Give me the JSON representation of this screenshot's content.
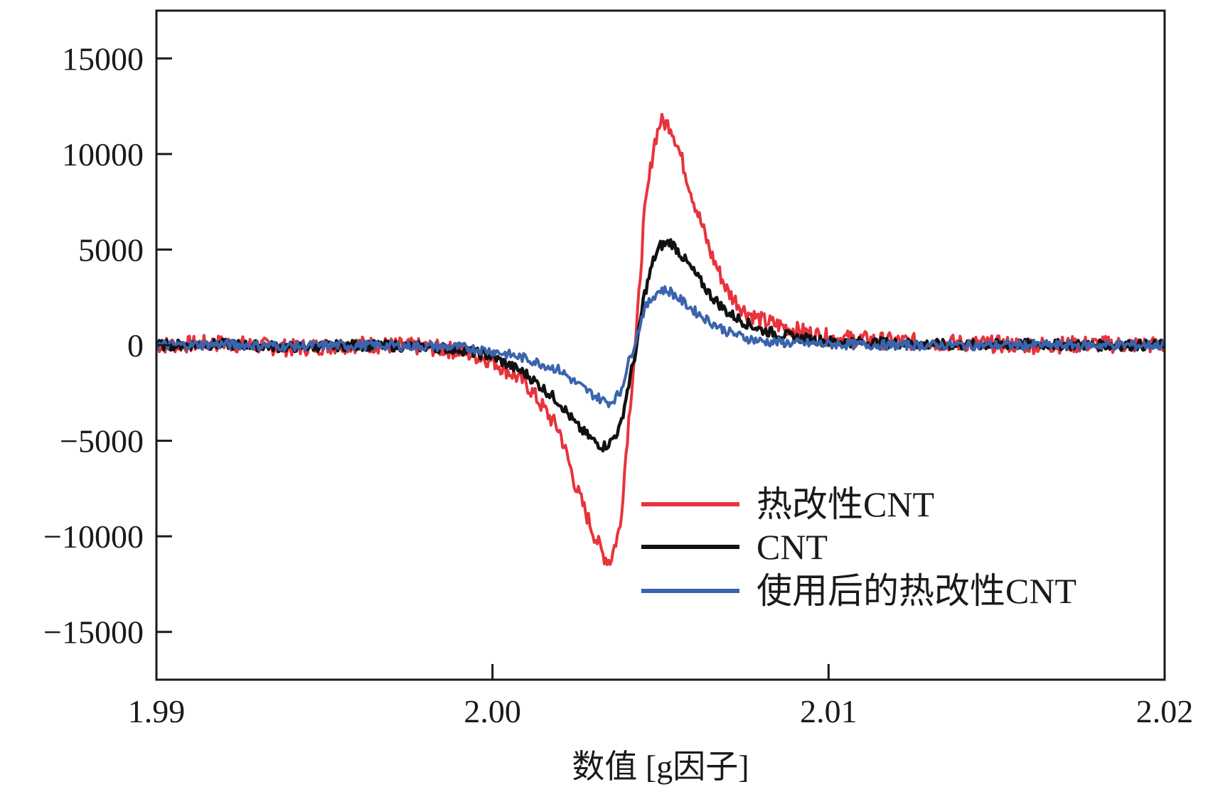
{
  "chart_data": {
    "type": "line",
    "xlabel": "数值 [g因子]",
    "ylabel": "",
    "xlim": [
      1.99,
      2.02
    ],
    "ylim": [
      -17500,
      17500
    ],
    "xticks": [
      1.99,
      2.0,
      2.01,
      2.02
    ],
    "xtick_labels": [
      "1.99",
      "2.00",
      "2.01",
      "2.02"
    ],
    "yticks": [
      15000,
      10000,
      5000,
      0,
      -5000,
      -10000,
      -15000
    ],
    "ytick_labels": [
      "15000",
      "10000",
      "5000",
      "0",
      "−5000",
      "−10000",
      "−15000"
    ],
    "grid": false,
    "legend_position": "bottom-right",
    "series": [
      {
        "name": "热改性CNT",
        "color": "#e8333a",
        "x": [
          1.99,
          1.992,
          1.994,
          1.996,
          1.998,
          1.999,
          2.0,
          2.001,
          2.002,
          2.0025,
          2.003,
          2.0033,
          2.0035,
          2.0038,
          2.004,
          2.0043,
          2.0045,
          2.0048,
          2.005,
          2.0053,
          2.0055,
          2.006,
          2.0065,
          2.007,
          2.0075,
          2.008,
          2.009,
          2.01,
          2.012,
          2.014,
          2.016,
          2.018,
          2.02
        ],
        "y": [
          0,
          100,
          -150,
          50,
          -100,
          -300,
          -800,
          -2000,
          -4500,
          -7500,
          -9800,
          -11000,
          -11300,
          -9500,
          -5000,
          1000,
          6500,
          10500,
          11700,
          11500,
          10500,
          7500,
          4800,
          2800,
          1800,
          1300,
          800,
          400,
          200,
          100,
          0,
          50,
          0
        ]
      },
      {
        "name": "CNT",
        "color": "#111111",
        "x": [
          1.99,
          1.992,
          1.994,
          1.996,
          1.998,
          1.999,
          2.0,
          2.001,
          2.002,
          2.0025,
          2.003,
          2.0033,
          2.0035,
          2.0038,
          2.004,
          2.0043,
          2.0045,
          2.0048,
          2.005,
          2.0053,
          2.0055,
          2.006,
          2.0065,
          2.007,
          2.0075,
          2.008,
          2.009,
          2.01,
          2.012,
          2.014,
          2.016,
          2.018,
          2.02
        ],
        "y": [
          0,
          50,
          -100,
          0,
          -80,
          -200,
          -600,
          -1500,
          -3000,
          -4200,
          -5000,
          -5300,
          -5100,
          -4300,
          -2500,
          0,
          2500,
          4500,
          5200,
          5400,
          5000,
          3800,
          2600,
          1700,
          1200,
          800,
          400,
          200,
          100,
          0,
          50,
          0,
          0
        ]
      },
      {
        "name": "使用后的热改性CNT",
        "color": "#3a64ad",
        "x": [
          1.99,
          1.992,
          1.994,
          1.996,
          1.998,
          1.999,
          2.0,
          2.001,
          2.002,
          2.0025,
          2.003,
          2.0033,
          2.0035,
          2.0038,
          2.004,
          2.0043,
          2.0045,
          2.0048,
          2.005,
          2.0053,
          2.0055,
          2.006,
          2.0065,
          2.007,
          2.0075,
          2.008,
          2.009,
          2.01,
          2.012,
          2.014,
          2.016,
          2.018,
          2.02
        ],
        "y": [
          0,
          50,
          -50,
          0,
          -50,
          -100,
          -300,
          -700,
          -1300,
          -2000,
          -2600,
          -2900,
          -3000,
          -2500,
          -1200,
          500,
          1800,
          2600,
          2900,
          2800,
          2500,
          1800,
          1200,
          700,
          400,
          200,
          100,
          50,
          0,
          0,
          0,
          0,
          0
        ]
      }
    ]
  }
}
